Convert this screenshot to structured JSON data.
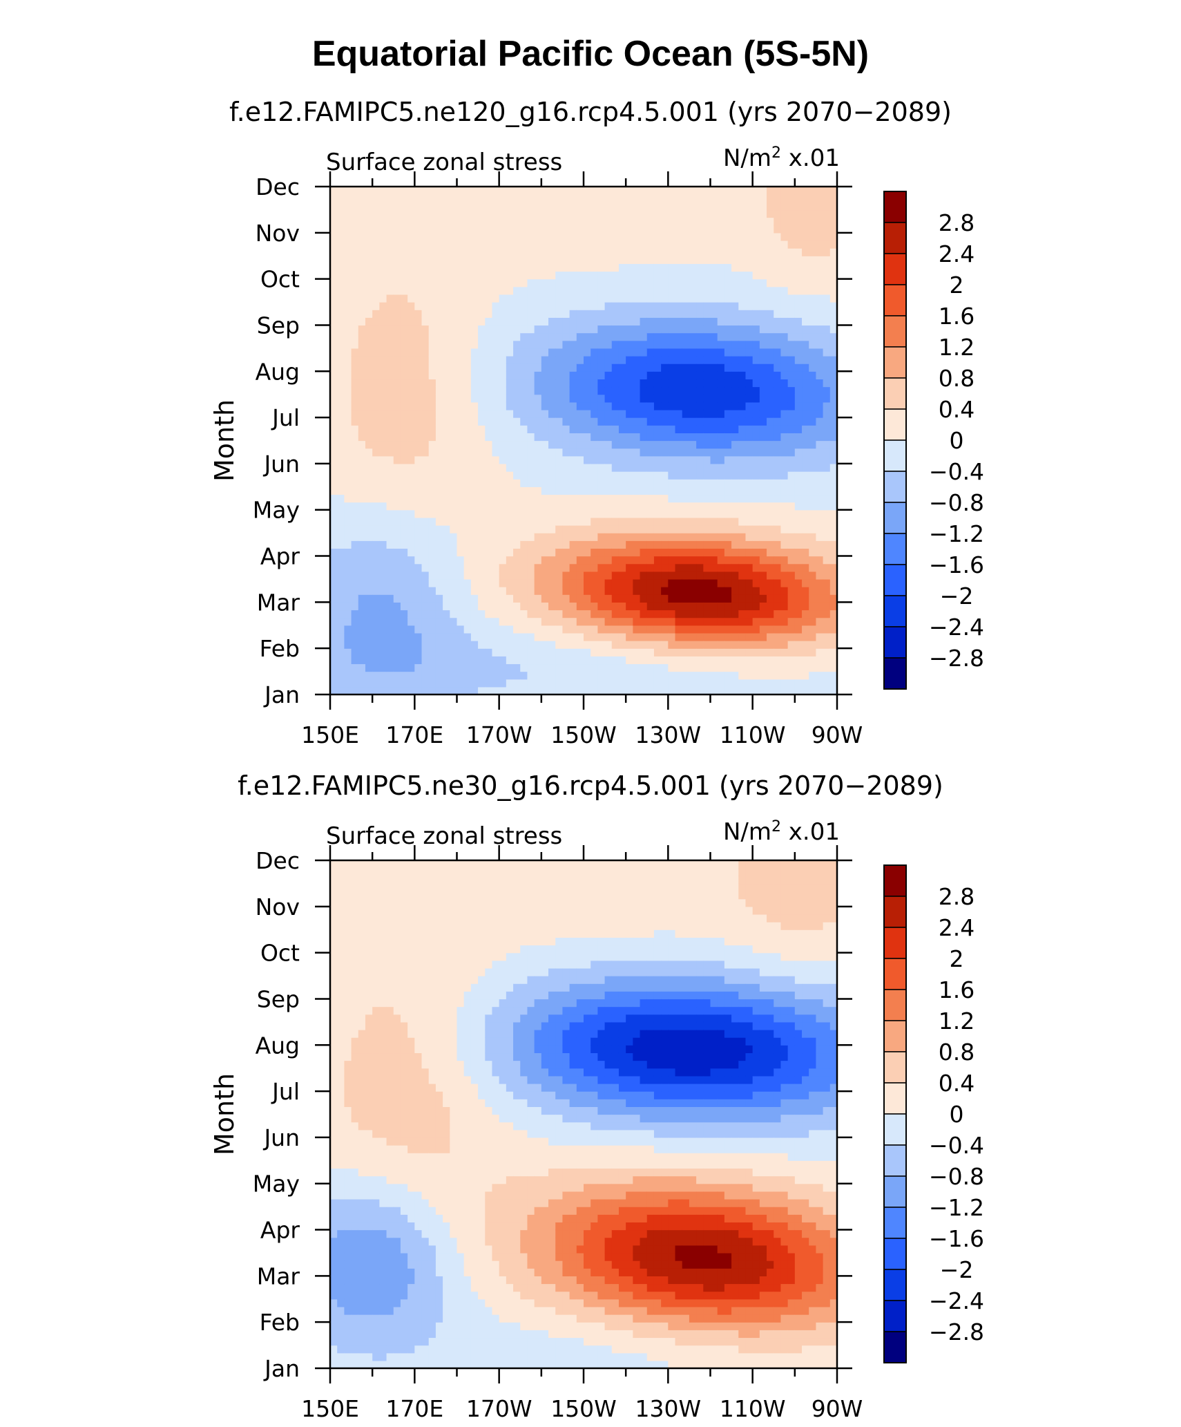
{
  "title": "Equatorial Pacific Ocean (5S-5N)",
  "colors": {
    "levels_neg": [
      "#00007f",
      "#0020c8",
      "#0a3ee6",
      "#2a62ff",
      "#4f86ff",
      "#7aa6f8",
      "#a9c6fb",
      "#d7e8fb"
    ],
    "levels_pos": [
      "#fde8d8",
      "#fbcfb4",
      "#f8a880",
      "#f37f4f",
      "#f05a2c",
      "#e03310",
      "#b81f05",
      "#8a0000"
    ]
  },
  "chart_data": [
    {
      "type": "heatmap",
      "subtitle": "f.e12.FAMIPC5.ne120_g16.rcp4.5.001 (yrs 2070−2089)",
      "left_string": "Surface zonal stress",
      "right_string_main": "N/m",
      "right_string_sup": "2",
      "right_string_tail": " x.01",
      "ylabel": "Month",
      "months": [
        "Jan",
        "Feb",
        "Mar",
        "Apr",
        "May",
        "Jun",
        "Jul",
        "Aug",
        "Sep",
        "Oct",
        "Nov",
        "Dec"
      ],
      "xticks": [
        "150E",
        "170E",
        "170W",
        "150W",
        "130W",
        "110W",
        "90W"
      ],
      "xlim_deg_east": [
        150,
        270
      ],
      "colorbar_labels": [
        "2.8",
        "2.4",
        "2",
        "1.6",
        "1.2",
        "0.8",
        "0.4",
        "0",
        "−0.4",
        "−0.8",
        "−1.2",
        "−1.6",
        "−2",
        "−2.4",
        "−2.8"
      ],
      "features": [
        {
          "lon": 237,
          "month": 2.2,
          "amp": 3.0,
          "slon": 24,
          "smonth": 0.85,
          "tilt": -0.45
        },
        {
          "lon": 237,
          "month": 6.6,
          "amp": -2.3,
          "slon": 27,
          "smonth": 1.05,
          "tilt": -0.3
        },
        {
          "lon": 162,
          "month": 2.0,
          "amp": -0.9,
          "slon": 14,
          "smonth": 1.5,
          "tilt": 0
        },
        {
          "lon": 167,
          "month": 6.5,
          "amp": 0.65,
          "slon": 14,
          "smonth": 2.2,
          "tilt": 0
        },
        {
          "lon": 200,
          "month": 10.8,
          "amp": 0.35,
          "slon": 30,
          "smonth": 1.0,
          "tilt": 0
        },
        {
          "lon": 265,
          "month": 11.0,
          "amp": 0.7,
          "slon": 10,
          "smonth": 1.4,
          "tilt": 0
        },
        {
          "lon": 210,
          "month": 0.6,
          "amp": -0.45,
          "slon": 50,
          "smonth": 0.7,
          "tilt": 0
        }
      ]
    },
    {
      "type": "heatmap",
      "subtitle": "f.e12.FAMIPC5.ne30_g16.rcp4.5.001 (yrs 2070−2089)",
      "left_string": "Surface zonal stress",
      "right_string_main": "N/m",
      "right_string_sup": "2",
      "right_string_tail": " x.01",
      "ylabel": "Month",
      "months": [
        "Jan",
        "Feb",
        "Mar",
        "Apr",
        "May",
        "Jun",
        "Jul",
        "Aug",
        "Sep",
        "Oct",
        "Nov",
        "Dec"
      ],
      "xticks": [
        "150E",
        "170E",
        "170W",
        "150W",
        "130W",
        "110W",
        "90W"
      ],
      "xlim_deg_east": [
        150,
        270
      ],
      "colorbar_labels": [
        "2.8",
        "2.4",
        "2",
        "1.6",
        "1.2",
        "0.8",
        "0.4",
        "0",
        "−0.4",
        "−0.8",
        "−1.2",
        "−1.6",
        "−2",
        "−2.4",
        "−2.8"
      ],
      "features": [
        {
          "lon": 238,
          "month": 2.4,
          "amp": 2.9,
          "slon": 26,
          "smonth": 1.1,
          "tilt": -0.45
        },
        {
          "lon": 235,
          "month": 6.9,
          "amp": -2.7,
          "slon": 30,
          "smonth": 1.05,
          "tilt": -0.3
        },
        {
          "lon": 160,
          "month": 2.3,
          "amp": -1.3,
          "slon": 14,
          "smonth": 1.3,
          "tilt": 0
        },
        {
          "lon": 168,
          "month": 6.2,
          "amp": 0.7,
          "slon": 16,
          "smonth": 2.4,
          "tilt": 0
        },
        {
          "lon": 212,
          "month": 10.5,
          "amp": 0.3,
          "slon": 30,
          "smonth": 1.0,
          "tilt": 0
        },
        {
          "lon": 262,
          "month": 10.8,
          "amp": 0.6,
          "slon": 12,
          "smonth": 1.5,
          "tilt": 0
        },
        {
          "lon": 215,
          "month": 0.3,
          "amp": -0.3,
          "slon": 30,
          "smonth": 0.7,
          "tilt": 0
        }
      ]
    }
  ]
}
